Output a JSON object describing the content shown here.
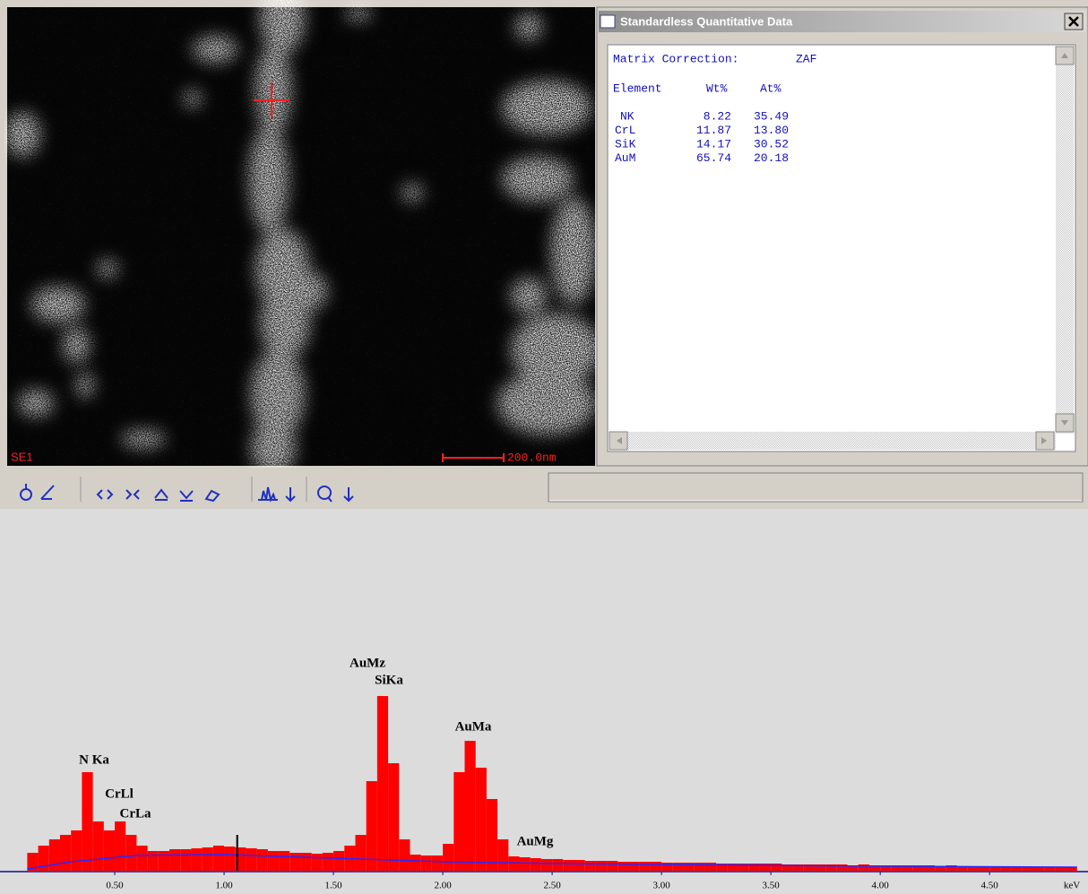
{
  "image": {
    "detector": "SE1",
    "scale_bar": "200.0nm"
  },
  "window": {
    "title": "Standardless Quantitative Data",
    "matrix_label": "Matrix Correction:",
    "matrix_value": "ZAF",
    "table": {
      "header": [
        "Element",
        "Wt%",
        "At%"
      ],
      "rows": [
        [
          "NK",
          "8.22",
          "35.49"
        ],
        [
          "CrL",
          "11.87",
          "13.80"
        ],
        [
          "SiK",
          "14.17",
          "30.52"
        ],
        [
          "AuM",
          "65.74",
          "20.18"
        ]
      ]
    }
  },
  "spectrum": {
    "type": "histogram",
    "color": "#ff0000",
    "bins": [
      0.1,
      0.15,
      0.2,
      0.25,
      0.3,
      0.35,
      0.4,
      0.45,
      0.5,
      0.55,
      0.6,
      0.65,
      0.7,
      0.75,
      0.8,
      0.85,
      0.9,
      0.95,
      1,
      1.05,
      1.1,
      1.15,
      1.2,
      1.25,
      1.3,
      1.35,
      1.4,
      1.45,
      1.5,
      1.55,
      1.6,
      1.65,
      1.7,
      1.75,
      1.8,
      1.85,
      1.9,
      1.95,
      2,
      2.05,
      2.1,
      2.15,
      2.2,
      2.25,
      2.3,
      2.35,
      2.4,
      2.45,
      2.5,
      2.55,
      2.6,
      2.65,
      2.7,
      2.75,
      2.8,
      2.85,
      2.9,
      2.95,
      3,
      3.05,
      3.1,
      3.15,
      3.2,
      3.25,
      3.3,
      3.35,
      3.4,
      3.45,
      3.5,
      3.55,
      3.6,
      3.65,
      3.7,
      3.75,
      3.8,
      3.85,
      3.9,
      3.95,
      4,
      4.05,
      4.1,
      4.15,
      4.2,
      4.25,
      4.3,
      4.35,
      4.4,
      4.45,
      4.5,
      4.55,
      4.6,
      4.65,
      4.7,
      4.75,
      4.8,
      4.85,
      4.9
    ],
    "values": [
      20,
      28,
      35,
      40,
      45,
      110,
      55,
      45,
      55,
      40,
      28,
      22,
      22,
      24,
      24,
      25,
      26,
      28,
      27,
      26,
      25,
      24,
      22,
      22,
      20,
      20,
      19,
      20,
      22,
      28,
      40,
      100,
      195,
      120,
      35,
      18,
      17,
      17,
      30,
      110,
      145,
      115,
      80,
      35,
      16,
      15,
      14,
      13,
      13,
      12,
      12,
      11,
      11,
      11,
      10,
      10,
      10,
      10,
      9,
      9,
      9,
      9,
      9,
      8,
      8,
      8,
      8,
      8,
      8,
      7,
      7,
      7,
      7,
      7,
      7,
      6,
      7,
      6,
      6,
      6,
      6,
      6,
      6,
      5,
      6,
      5,
      5,
      5,
      5,
      5,
      5,
      4,
      4,
      4,
      4,
      4
    ],
    "background": {
      "color": "#2828ff",
      "x": [
        0.1,
        0.3,
        0.6,
        1.0,
        1.5,
        2.0,
        2.5,
        3.0,
        4.0,
        4.9
      ],
      "values": [
        2,
        10,
        17,
        18,
        14,
        10,
        8,
        7,
        5,
        4
      ]
    },
    "cursor": 1.06,
    "xlim": [
      0,
      4.95
    ],
    "ylim": [
      0,
      230
    ],
    "xticks": [
      {
        "value": 0.5,
        "label": "0.50"
      },
      {
        "value": 1,
        "label": "1.00"
      },
      {
        "value": 1.5,
        "label": "1.50"
      },
      {
        "value": 2,
        "label": "2.00"
      },
      {
        "value": 2.5,
        "label": "2.50"
      },
      {
        "value": 3,
        "label": "3.00"
      },
      {
        "value": 3.5,
        "label": "3.50"
      },
      {
        "value": 4,
        "label": "4.00"
      },
      {
        "value": 4.5,
        "label": "4.50"
      }
    ],
    "x_unit": "keV",
    "peak_labels": [
      "N Ka",
      "CrLl",
      "CrLa",
      "AuMz",
      "SiKa",
      "AuMa",
      "AuMg"
    ]
  }
}
